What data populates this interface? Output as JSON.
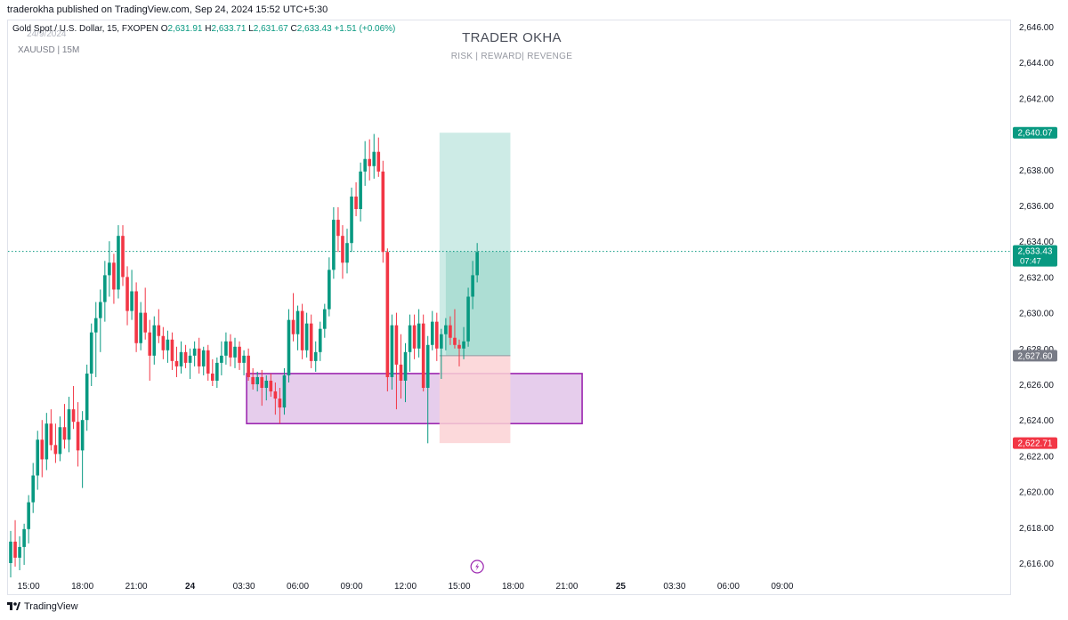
{
  "header": {
    "published": "traderokha published on TradingView.com, Sep 24, 2024 15:52 UTC+5:30"
  },
  "legend": {
    "instrument": "Gold Spot / U.S. Dollar, 15, FXOPEN",
    "o_label": "O",
    "o_value": "2,631.91",
    "h_label": "H",
    "h_value": "2,633.71",
    "l_label": "L",
    "l_value": "2,631.67",
    "c_label": "C",
    "c_value": "2,633.43",
    "change": "+1.51 (+0.06%)",
    "date_faint": "24/9/2024",
    "symbol": "XAUUSD | 15M"
  },
  "watermark": {
    "title": "TRADER OKHA",
    "subtitle": "RISK | REWARD| REVENGE"
  },
  "footer": {
    "brand": "TradingView"
  },
  "colors": {
    "up": "#089981",
    "down": "#f23645",
    "zone_fill": "#e6cdec",
    "zone_border": "#9c27b0",
    "target_fill": "#cdebe6",
    "stop_fill": "#fbd2d5",
    "price_line": "#089981",
    "entry_label": "#787b86"
  },
  "chart_data": {
    "type": "candlestick",
    "ylim": [
      2615.0,
      2646.5
    ],
    "y_ticks": [
      2616,
      2618,
      2620,
      2622,
      2624,
      2626,
      2628,
      2630,
      2632,
      2634,
      2636,
      2638,
      2640,
      2642,
      2644,
      2646
    ],
    "y_tick_labels": [
      "2,616.00",
      "2,618.00",
      "2,620.00",
      "2,622.00",
      "2,624.00",
      "2,626.00",
      "2,628.00",
      "2,630.00",
      "2,632.00",
      "2,634.00",
      "2,636.00",
      "2,638.00",
      "2,640.00",
      "2,642.00",
      "2,644.00",
      "2,646.00"
    ],
    "x_labels": [
      {
        "bar": 4,
        "text": "15:00",
        "bold": false
      },
      {
        "bar": 16,
        "text": "18:00",
        "bold": false
      },
      {
        "bar": 28,
        "text": "21:00",
        "bold": false
      },
      {
        "bar": 40,
        "text": "24",
        "bold": true
      },
      {
        "bar": 52,
        "text": "03:30",
        "bold": false
      },
      {
        "bar": 64,
        "text": "06:00",
        "bold": false
      },
      {
        "bar": 76,
        "text": "09:00",
        "bold": false
      },
      {
        "bar": 88,
        "text": "12:00",
        "bold": false
      },
      {
        "bar": 100,
        "text": "15:00",
        "bold": false
      },
      {
        "bar": 112,
        "text": "18:00",
        "bold": false
      },
      {
        "bar": 124,
        "text": "21:00",
        "bold": false
      },
      {
        "bar": 136,
        "text": "25",
        "bold": true
      },
      {
        "bar": 148,
        "text": "03:30",
        "bold": false
      },
      {
        "bar": 160,
        "text": "06:00",
        "bold": false
      },
      {
        "bar": 172,
        "text": "09:00",
        "bold": false
      }
    ],
    "ohlc": [
      [
        2616.0,
        2617.8,
        2615.2,
        2617.2
      ],
      [
        2617.2,
        2618.4,
        2615.8,
        2616.3
      ],
      [
        2616.3,
        2617.5,
        2615.6,
        2616.9
      ],
      [
        2616.9,
        2618.2,
        2615.9,
        2617.9
      ],
      [
        2617.9,
        2619.8,
        2617.1,
        2619.4
      ],
      [
        2619.4,
        2621.6,
        2618.8,
        2620.9
      ],
      [
        2620.9,
        2623.4,
        2620.1,
        2622.9
      ],
      [
        2622.9,
        2624.0,
        2620.8,
        2621.8
      ],
      [
        2621.8,
        2624.4,
        2621.2,
        2623.8
      ],
      [
        2623.8,
        2624.6,
        2622.3,
        2622.6
      ],
      [
        2622.6,
        2623.8,
        2621.6,
        2622.1
      ],
      [
        2622.1,
        2624.2,
        2621.7,
        2623.6
      ],
      [
        2623.6,
        2624.9,
        2622.4,
        2622.9
      ],
      [
        2622.9,
        2625.3,
        2622.2,
        2624.6
      ],
      [
        2624.6,
        2625.9,
        2623.5,
        2623.9
      ],
      [
        2623.9,
        2625.0,
        2621.4,
        2622.3
      ],
      [
        2622.3,
        2624.5,
        2620.2,
        2624.0
      ],
      [
        2624.0,
        2627.1,
        2623.4,
        2626.6
      ],
      [
        2626.6,
        2629.4,
        2625.9,
        2628.9
      ],
      [
        2628.9,
        2630.6,
        2626.4,
        2629.7
      ],
      [
        2629.7,
        2631.3,
        2627.8,
        2630.6
      ],
      [
        2630.6,
        2632.9,
        2629.5,
        2632.1
      ],
      [
        2632.1,
        2634.0,
        2630.9,
        2632.8
      ],
      [
        2632.8,
        2633.3,
        2630.5,
        2631.3
      ],
      [
        2631.3,
        2634.9,
        2630.8,
        2634.3
      ],
      [
        2634.3,
        2634.9,
        2631.5,
        2632.0
      ],
      [
        2632.0,
        2632.6,
        2629.3,
        2630.1
      ],
      [
        2630.1,
        2632.4,
        2629.6,
        2631.2
      ],
      [
        2631.2,
        2631.7,
        2627.8,
        2628.3
      ],
      [
        2628.3,
        2630.6,
        2627.9,
        2630.0
      ],
      [
        2630.0,
        2631.4,
        2628.5,
        2628.9
      ],
      [
        2628.9,
        2629.6,
        2626.2,
        2627.6
      ],
      [
        2627.6,
        2629.8,
        2627.1,
        2629.3
      ],
      [
        2629.3,
        2630.2,
        2628.3,
        2628.7
      ],
      [
        2628.7,
        2629.2,
        2627.4,
        2627.9
      ],
      [
        2627.9,
        2629.0,
        2627.2,
        2628.5
      ],
      [
        2628.5,
        2628.9,
        2626.8,
        2627.3
      ],
      [
        2627.3,
        2628.1,
        2626.4,
        2627.0
      ],
      [
        2627.0,
        2628.4,
        2626.6,
        2627.8
      ],
      [
        2627.8,
        2628.2,
        2626.9,
        2627.2
      ],
      [
        2627.2,
        2628.0,
        2626.3,
        2627.6
      ],
      [
        2627.6,
        2628.4,
        2627.0,
        2628.0
      ],
      [
        2628.0,
        2628.6,
        2626.6,
        2627.0
      ],
      [
        2627.0,
        2628.1,
        2626.5,
        2627.9
      ],
      [
        2627.9,
        2628.2,
        2626.2,
        2626.6
      ],
      [
        2626.6,
        2627.4,
        2625.9,
        2626.2
      ],
      [
        2626.2,
        2627.5,
        2625.8,
        2627.2
      ],
      [
        2627.2,
        2628.4,
        2626.5,
        2627.6
      ],
      [
        2627.6,
        2628.9,
        2627.1,
        2628.4
      ],
      [
        2628.4,
        2628.8,
        2627.0,
        2627.5
      ],
      [
        2627.5,
        2628.6,
        2626.9,
        2628.1
      ],
      [
        2628.1,
        2628.4,
        2626.8,
        2627.2
      ],
      [
        2627.2,
        2627.9,
        2626.5,
        2627.6
      ],
      [
        2627.6,
        2628.0,
        2626.2,
        2626.4
      ],
      [
        2626.4,
        2626.9,
        2625.7,
        2626.0
      ],
      [
        2626.0,
        2626.7,
        2625.6,
        2626.4
      ],
      [
        2626.4,
        2626.8,
        2624.8,
        2625.8
      ],
      [
        2625.8,
        2626.5,
        2625.1,
        2626.2
      ],
      [
        2626.2,
        2626.6,
        2625.3,
        2625.6
      ],
      [
        2625.6,
        2626.1,
        2624.3,
        2625.2
      ],
      [
        2625.2,
        2625.8,
        2623.8,
        2624.7
      ],
      [
        2624.7,
        2626.9,
        2624.3,
        2626.5
      ],
      [
        2626.5,
        2630.2,
        2626.1,
        2629.6
      ],
      [
        2629.6,
        2631.1,
        2628.4,
        2628.8
      ],
      [
        2628.8,
        2630.4,
        2627.9,
        2630.1
      ],
      [
        2630.1,
        2630.5,
        2627.4,
        2627.9
      ],
      [
        2627.9,
        2630.0,
        2627.5,
        2629.4
      ],
      [
        2629.4,
        2629.9,
        2626.9,
        2627.3
      ],
      [
        2627.3,
        2628.4,
        2626.7,
        2627.8
      ],
      [
        2627.8,
        2629.5,
        2627.3,
        2629.1
      ],
      [
        2629.1,
        2630.5,
        2628.6,
        2630.2
      ],
      [
        2630.2,
        2633.1,
        2629.8,
        2632.4
      ],
      [
        2632.4,
        2635.9,
        2631.9,
        2635.2
      ],
      [
        2635.2,
        2635.9,
        2633.4,
        2634.3
      ],
      [
        2634.3,
        2634.9,
        2631.9,
        2632.8
      ],
      [
        2632.8,
        2634.7,
        2632.2,
        2633.9
      ],
      [
        2633.9,
        2637.0,
        2633.4,
        2636.5
      ],
      [
        2636.5,
        2637.3,
        2635.4,
        2635.8
      ],
      [
        2635.8,
        2638.4,
        2635.1,
        2637.9
      ],
      [
        2637.9,
        2639.6,
        2637.1,
        2638.6
      ],
      [
        2638.6,
        2639.7,
        2637.4,
        2638.2
      ],
      [
        2638.2,
        2640.0,
        2637.5,
        2639.0
      ],
      [
        2639.0,
        2639.8,
        2637.6,
        2637.9
      ],
      [
        2637.9,
        2638.5,
        2632.8,
        2633.4
      ],
      [
        2633.4,
        2633.6,
        2625.6,
        2626.4
      ],
      [
        2626.4,
        2629.9,
        2625.7,
        2629.3
      ],
      [
        2629.3,
        2630.0,
        2624.6,
        2627.1
      ],
      [
        2627.1,
        2628.8,
        2625.2,
        2626.2
      ],
      [
        2626.2,
        2628.3,
        2625.0,
        2627.8
      ],
      [
        2627.8,
        2629.9,
        2626.7,
        2629.3
      ],
      [
        2629.3,
        2629.9,
        2627.4,
        2628.0
      ],
      [
        2628.0,
        2630.2,
        2627.5,
        2629.4
      ],
      [
        2629.4,
        2629.9,
        2625.6,
        2625.8
      ],
      [
        2625.8,
        2628.7,
        2622.7,
        2628.2
      ],
      [
        2628.2,
        2630.1,
        2627.9,
        2629.5
      ],
      [
        2629.5,
        2630.0,
        2627.3,
        2628.0
      ],
      [
        2628.0,
        2629.1,
        2626.3,
        2628.8
      ],
      [
        2628.8,
        2629.7,
        2627.9,
        2629.3
      ],
      [
        2629.3,
        2629.8,
        2628.2,
        2628.6
      ],
      [
        2628.6,
        2630.2,
        2628.0,
        2628.2
      ],
      [
        2628.2,
        2628.5,
        2627.0,
        2628.0
      ],
      [
        2628.0,
        2629.2,
        2627.4,
        2628.4
      ],
      [
        2628.4,
        2631.4,
        2628.1,
        2630.9
      ],
      [
        2630.9,
        2632.9,
        2630.2,
        2632.1
      ],
      [
        2632.1,
        2633.9,
        2631.7,
        2633.4
      ]
    ],
    "demand_zone": {
      "top": 2626.6,
      "bottom": 2623.8,
      "start_bar": 53,
      "end_bar": 127,
      "label": ""
    },
    "position": {
      "entry": 2627.6,
      "target": 2640.07,
      "stop": 2622.71,
      "start_bar": 96,
      "end_bar": 111
    },
    "price_labels": [
      {
        "text": "2,640.07",
        "price": 2640.07,
        "kind": "target"
      },
      {
        "text": "2,633.43",
        "text2": "07:47",
        "price": 2633.43,
        "kind": "current"
      },
      {
        "text": "2,627.60",
        "price": 2627.6,
        "kind": "entry"
      },
      {
        "text": "2,622.71",
        "price": 2622.71,
        "kind": "stop"
      }
    ],
    "current_price": 2633.43,
    "event_marker_bar": 104,
    "grid": false
  }
}
